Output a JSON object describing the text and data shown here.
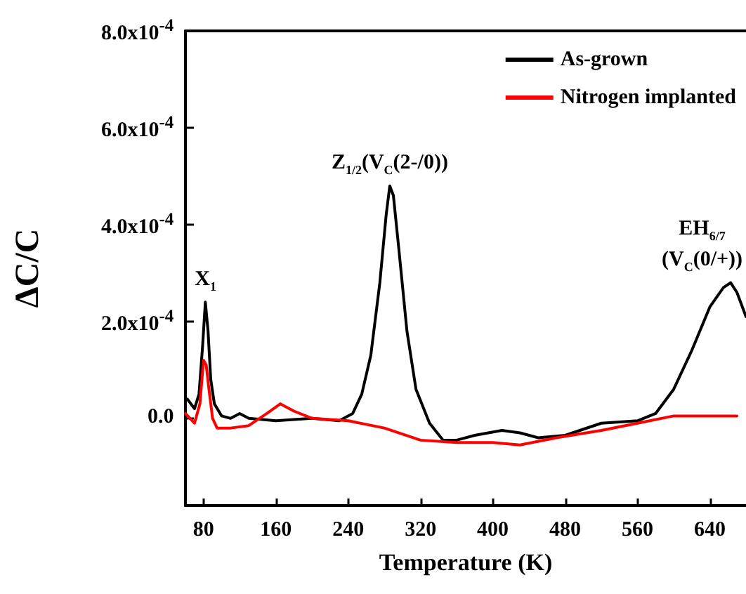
{
  "chart_data": {
    "type": "line",
    "xlabel": "Temperature (K)",
    "ylabel": "ΔC/C",
    "xlim": [
      60,
      680
    ],
    "xticks": [
      80,
      160,
      240,
      320,
      400,
      480,
      560,
      640
    ],
    "ylim": [
      -0.00018,
      0.0008
    ],
    "yticks": [
      {
        "value": 0,
        "label": "0.0"
      },
      {
        "value": 0.0002,
        "label": "2.0x10$^{-4}$"
      },
      {
        "value": 0.0004,
        "label": "4.0x10$^{-4}$"
      },
      {
        "value": 0.0006,
        "label": "6.0x10$^{-4}$"
      },
      {
        "value": 0.0008,
        "label": "8.0x10$^{-4}$"
      }
    ],
    "grid": false,
    "legend": "top right",
    "marker": "none",
    "line_style": "solid",
    "series": [
      {
        "name": "As-grown",
        "color": "#000000",
        "x": [
          62,
          70,
          75,
          79,
          82,
          85,
          88,
          92,
          100,
          110,
          120,
          130,
          160,
          200,
          230,
          245,
          255,
          265,
          275,
          282,
          286,
          290,
          296,
          305,
          315,
          330,
          345,
          360,
          380,
          410,
          430,
          450,
          480,
          520,
          560,
          580,
          600,
          620,
          640,
          655,
          663,
          670,
          680
        ],
        "values": [
          4e-05,
          2e-05,
          5e-05,
          0.00015,
          0.00024,
          0.00018,
          8e-05,
          3e-05,
          5e-06,
          0.0,
          1e-05,
          0.0,
          -5e-06,
          0.0,
          -5e-06,
          1e-05,
          5e-05,
          0.00013,
          0.00028,
          0.00042,
          0.00048,
          0.00046,
          0.00035,
          0.00018,
          6e-05,
          -1e-05,
          -4.5e-05,
          -4.5e-05,
          -3.5e-05,
          -2.5e-05,
          -3e-05,
          -4e-05,
          -3.5e-05,
          -1e-05,
          -5e-06,
          1e-05,
          6e-05,
          0.00014,
          0.00023,
          0.00027,
          0.00028,
          0.00026,
          0.00021
        ]
      },
      {
        "name": "Nitrogen implanted",
        "color": "#ff0000",
        "x": [
          60,
          70,
          76,
          80,
          83,
          86,
          90,
          95,
          110,
          130,
          150,
          165,
          180,
          200,
          240,
          280,
          320,
          360,
          400,
          430,
          470,
          520,
          560,
          600,
          640,
          670
        ],
        "values": [
          1e-05,
          -1e-05,
          3e-05,
          0.00012,
          0.00011,
          6e-05,
          0.0,
          -2e-05,
          -2e-05,
          -1.5e-05,
          1e-05,
          3e-05,
          1.5e-05,
          0.0,
          -5e-06,
          -2e-05,
          -4.5e-05,
          -5e-05,
          -5e-05,
          -5.5e-05,
          -4e-05,
          -2.5e-05,
          -1e-05,
          5e-06,
          5e-06,
          5e-06
        ]
      }
    ],
    "annotations": [
      {
        "text": "X$_{1}$",
        "x": 82,
        "y": 0.00024
      },
      {
        "text": "Z$_{1/2}$(V$_{C}$(2-/0))",
        "x": 286,
        "y": 0.00048
      },
      {
        "text": "EH$_{6/7}$",
        "x": 663,
        "y": 0.00028
      },
      "(V$_{C}$(0/+))"
    ]
  }
}
